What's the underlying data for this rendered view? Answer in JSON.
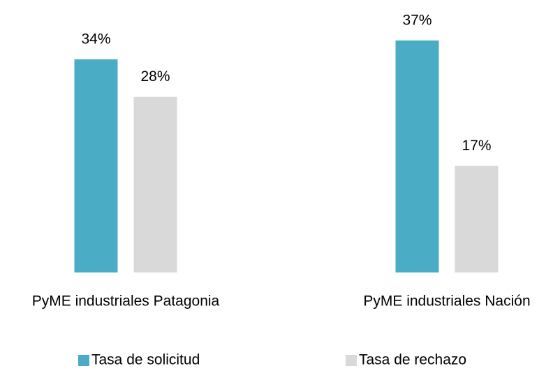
{
  "chart_data": {
    "type": "bar",
    "categories": [
      "PyME industriales Patagonia",
      "PyME industriales Nación"
    ],
    "series": [
      {
        "name": "Tasa de solicitud",
        "color": "#4bacc6",
        "values": [
          34,
          37
        ],
        "value_labels": [
          "34%",
          "37%"
        ]
      },
      {
        "name": "Tasa de rechazo",
        "color": "#d9d9d9",
        "values": [
          28,
          17
        ],
        "value_labels": [
          "28%",
          "17%"
        ]
      }
    ],
    "ylim": [
      0,
      40
    ],
    "legend": "bottom"
  }
}
